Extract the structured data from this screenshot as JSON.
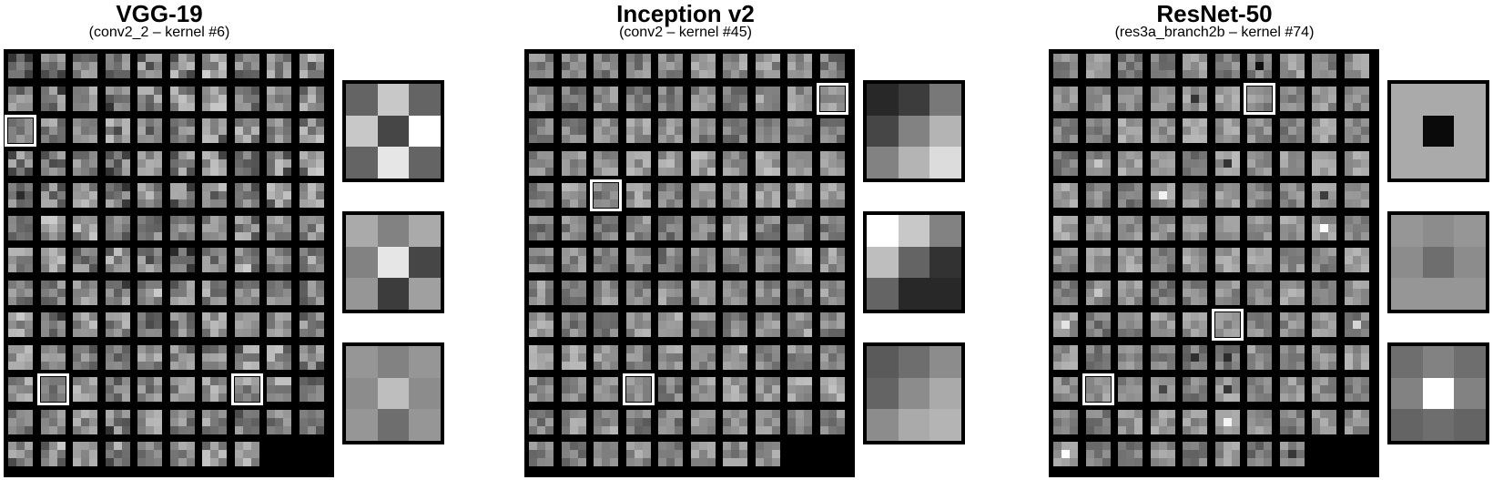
{
  "panels": [
    {
      "title": "VGG-19",
      "subtitle": "(conv2_2 – kernel #6)",
      "highlighted_kernels": [
        [
          2,
          0
        ],
        [
          10,
          1
        ],
        [
          10,
          7
        ]
      ],
      "zoom_kernels": [
        [
          [
            100,
            200,
            100
          ],
          [
            200,
            70,
            255
          ],
          [
            100,
            230,
            100
          ]
        ],
        [
          [
            170,
            130,
            170
          ],
          [
            130,
            230,
            70
          ],
          [
            150,
            60,
            160
          ]
        ],
        [
          [
            150,
            130,
            150
          ],
          [
            140,
            190,
            140
          ],
          [
            150,
            110,
            150
          ]
        ]
      ]
    },
    {
      "title": "Inception v2",
      "subtitle": "(conv2 – kernel #45)",
      "highlighted_kernels": [
        [
          1,
          9
        ],
        [
          4,
          2
        ],
        [
          10,
          3
        ]
      ],
      "zoom_kernels": [
        [
          [
            40,
            60,
            120
          ],
          [
            70,
            130,
            180
          ],
          [
            130,
            180,
            220
          ]
        ],
        [
          [
            255,
            200,
            130
          ],
          [
            190,
            100,
            50
          ],
          [
            100,
            40,
            40
          ]
        ],
        [
          [
            90,
            110,
            140
          ],
          [
            100,
            140,
            170
          ],
          [
            140,
            170,
            180
          ]
        ]
      ]
    },
    {
      "title": "ResNet-50",
      "subtitle": "(res3a_branch2b – kernel #74)",
      "highlighted_kernels": [
        [
          1,
          6
        ],
        [
          8,
          5
        ],
        [
          10,
          1
        ]
      ],
      "zoom_kernels": [
        [
          [
            170,
            170,
            170
          ],
          [
            170,
            10,
            170
          ],
          [
            170,
            170,
            170
          ]
        ],
        [
          [
            150,
            140,
            150
          ],
          [
            140,
            110,
            140
          ],
          [
            150,
            150,
            150
          ]
        ],
        [
          [
            110,
            130,
            110
          ],
          [
            130,
            255,
            130
          ],
          [
            100,
            110,
            100
          ]
        ]
      ]
    }
  ]
}
